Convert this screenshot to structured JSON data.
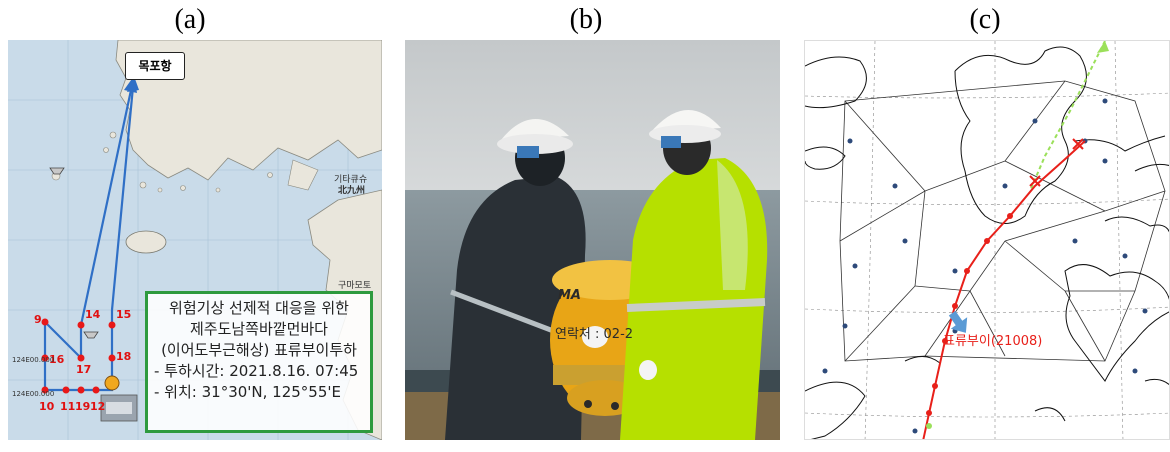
{
  "labels": {
    "a": "(a)",
    "b": "(b)",
    "c": "(c)"
  },
  "panel_a": {
    "port": "목포항",
    "map_labels": {
      "kitakyushu_kr": "기타큐슈",
      "kitakyushu_jp": "北九州",
      "kumamoto": "구마모토"
    },
    "stations": [
      "9",
      "14",
      "15",
      "16",
      "17",
      "18",
      "10",
      "11",
      "19",
      "12"
    ],
    "coords": [
      "124E00.000",
      "124E00.000"
    ],
    "info": {
      "line1": "위험기상 선제적 대응을 위한",
      "line2": "제주도남쪽바깥먼바다",
      "line3": "(이어도부근해상) 표류부이투하",
      "line4": "- 투하시간: 2021.8.16. 07:45",
      "line5": "- 위치: 31°30'N, 125°55'E"
    }
  },
  "panel_b": {
    "buoy_text1": "MA",
    "buoy_text2": "연락처 : 02-2"
  },
  "panel_c": {
    "buoy_label": "표류부이(21008)",
    "track_color": "#e8201a",
    "forecast_color": "#9be05a"
  }
}
